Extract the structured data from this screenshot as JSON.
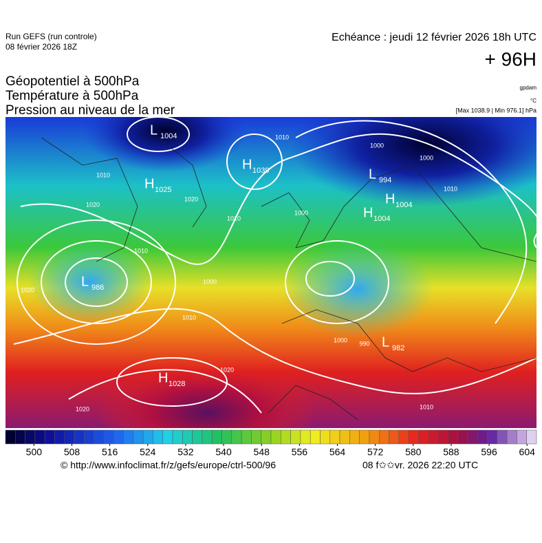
{
  "header": {
    "run": "Run GEFS (run controle)",
    "date": "08 février 2026 18Z",
    "valid": "Echéance : jeudi 12 février 2026 18h UTC",
    "lead": "+ 96H"
  },
  "fields": [
    "Géopotentiel à 500hPa",
    "Température à 500hPa",
    "Pression au niveau de la mer"
  ],
  "units": [
    "gpdam",
    "°C",
    "[Max 1038.9 | Min 976.1] hPa"
  ],
  "centers": [
    {
      "kind": "L",
      "value": "1004"
    },
    {
      "kind": "H",
      "value": "1039"
    },
    {
      "kind": "H",
      "value": "1025"
    },
    {
      "kind": "L",
      "value": "994"
    },
    {
      "kind": "H",
      "value": "1004"
    },
    {
      "kind": "H",
      "value": "1004"
    },
    {
      "kind": "L",
      "value": "986"
    },
    {
      "kind": "L",
      "value": "982"
    },
    {
      "kind": "H",
      "value": "1028"
    }
  ],
  "isobar_labels": [
    "1000",
    "1010",
    "1020",
    "1010",
    "1000",
    "1020",
    "1010",
    "1000",
    "1010",
    "1020",
    "1010",
    "1000",
    "990",
    "1010",
    "1020",
    "1020",
    "1000",
    "1010"
  ],
  "colorbar": {
    "ticks": [
      500,
      508,
      516,
      524,
      532,
      540,
      548,
      556,
      564,
      572,
      580,
      588,
      596,
      604
    ],
    "min": 494,
    "max": 606
  },
  "footer": {
    "url": "© http://www.infoclimat.fr/z/gefs/europe/ctrl-500/96",
    "issued": "08 f✩✩vr. 2026 22:20 UTC"
  }
}
